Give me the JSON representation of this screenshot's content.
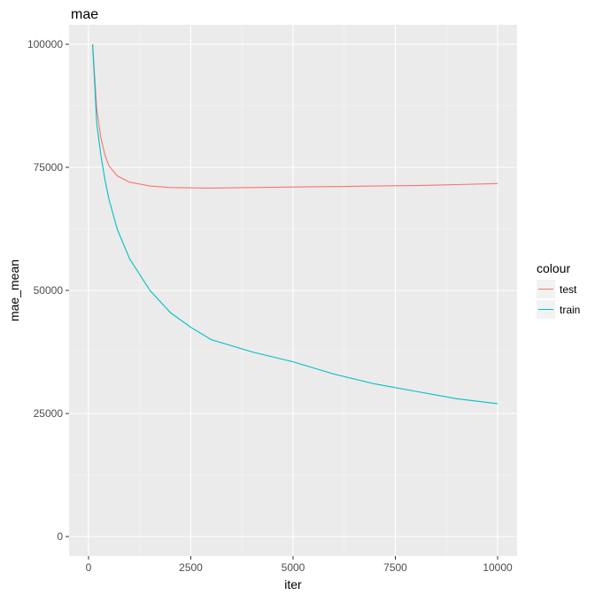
{
  "chart_data": {
    "type": "line",
    "title": "mae",
    "xlabel": "iter",
    "ylabel": "mae_mean",
    "xlim": [
      -500,
      10500
    ],
    "ylim": [
      -5000,
      105000
    ],
    "x_ticks": [
      0,
      2500,
      5000,
      7500,
      10000
    ],
    "x_tick_labels": [
      "0",
      "2500",
      "5000",
      "7500",
      "10000"
    ],
    "y_ticks": [
      0,
      25000,
      50000,
      75000,
      100000
    ],
    "y_tick_labels": [
      "0",
      "25000",
      "50000",
      "75000",
      "100000"
    ],
    "grid": true,
    "legend": {
      "title": "colour",
      "position": "right",
      "entries": [
        "test",
        "train"
      ]
    },
    "series": [
      {
        "name": "test",
        "color": "#F8766D",
        "x": [
          100,
          200,
          300,
          400,
          500,
          700,
          1000,
          1500,
          2000,
          3000,
          4000,
          5000,
          6000,
          7000,
          8000,
          9000,
          10000
        ],
        "y": [
          100000,
          87000,
          81000,
          77500,
          75300,
          73300,
          72000,
          71200,
          70900,
          70800,
          70900,
          71000,
          71100,
          71200,
          71300,
          71500,
          71700
        ]
      },
      {
        "name": "train",
        "color": "#00BFC4",
        "x": [
          100,
          200,
          300,
          400,
          500,
          700,
          1000,
          1500,
          2000,
          2500,
          3000,
          4000,
          5000,
          6000,
          7000,
          8000,
          9000,
          10000
        ],
        "y": [
          100000,
          84000,
          77500,
          72500,
          68500,
          62500,
          56500,
          50000,
          45500,
          42500,
          40000,
          37500,
          35500,
          33000,
          31000,
          29500,
          28000,
          27000
        ]
      }
    ]
  }
}
